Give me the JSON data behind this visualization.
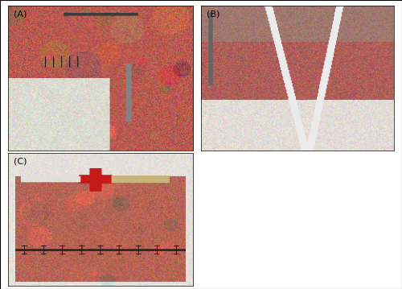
{
  "figure_width": 5.0,
  "figure_height": 3.59,
  "dpi": 100,
  "background_color": "#ffffff",
  "border_color": "#000000",
  "labels": [
    "(A)",
    "(B)",
    "(C)"
  ],
  "label_fontsize": 8,
  "label_color": "#000000",
  "subplot_positions": {
    "A": [
      0.02,
      0.48,
      0.46,
      0.5
    ],
    "B": [
      0.5,
      0.48,
      0.48,
      0.5
    ],
    "C": [
      0.02,
      0.01,
      0.46,
      0.46
    ]
  },
  "outer_border_linewidth": 0.8
}
